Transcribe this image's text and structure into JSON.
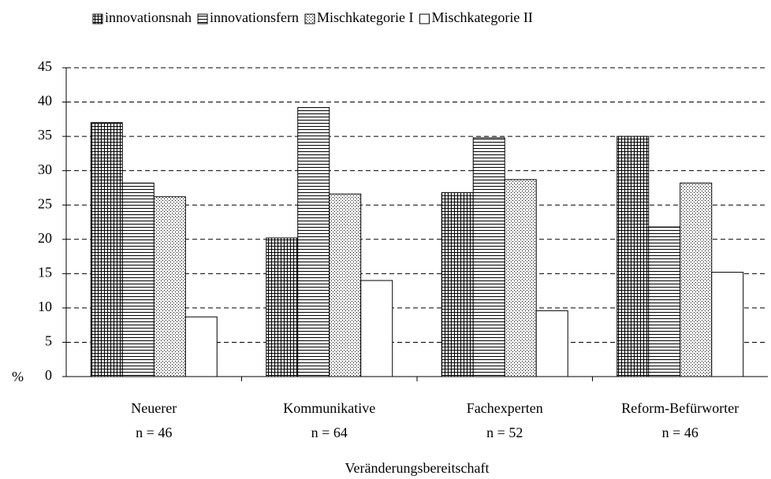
{
  "chart_data": {
    "type": "bar",
    "categories": [
      "Neuerer",
      "Kommunikative",
      "Fachexperten",
      "Reform-Befürworter"
    ],
    "category_sublabels": [
      "n = 46",
      "n = 64",
      "n = 52",
      "n = 46"
    ],
    "x_label": "Veränderungsbereitschaft",
    "y_label": "%",
    "series": [
      {
        "name": "innovationsnah",
        "color": "#000000",
        "pattern": "grid",
        "values": [
          37,
          20.2,
          26.8,
          35
        ]
      },
      {
        "name": "innovationsfern",
        "color": "#000000",
        "pattern": "horizontal",
        "values": [
          28.2,
          39.2,
          34.8,
          21.8
        ]
      },
      {
        "name": "Mischkategorie I",
        "color": "#000000",
        "pattern": "dots",
        "values": [
          26.2,
          26.6,
          28.7,
          28.2
        ]
      },
      {
        "name": "Mischkategorie II",
        "color": "#000000",
        "pattern": "none",
        "values": [
          8.7,
          14,
          9.6,
          15.2
        ]
      }
    ],
    "ylim": [
      0,
      45
    ],
    "yticks": [
      0,
      5,
      10,
      15,
      20,
      25,
      30,
      35,
      40,
      45
    ],
    "grid": true,
    "legend": "top"
  }
}
